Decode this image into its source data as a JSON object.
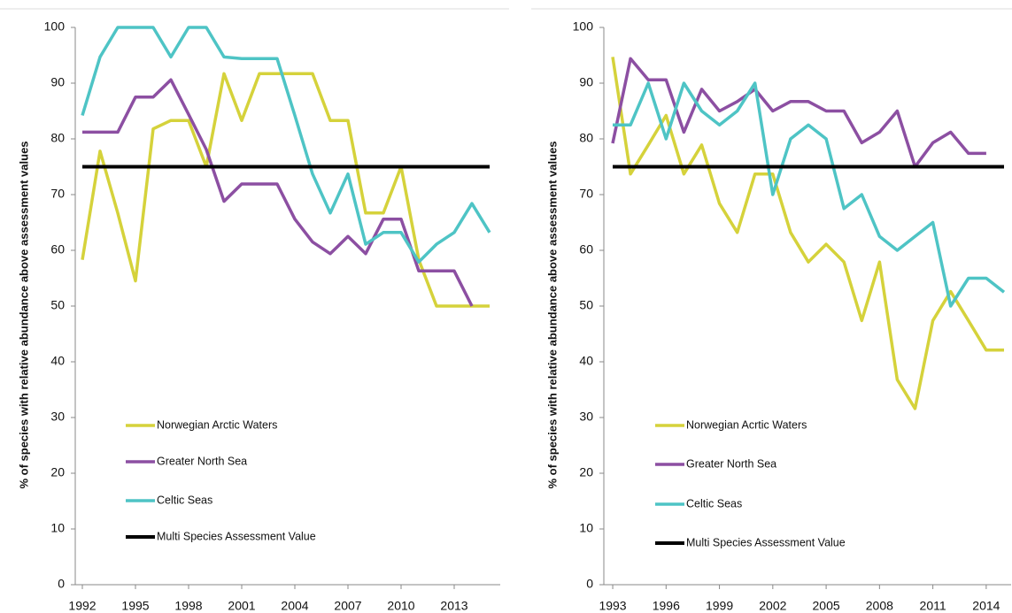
{
  "chart_data": [
    {
      "type": "line",
      "ylabel": "% of species with relative abundance above assessment values",
      "x": [
        1992,
        1993,
        1994,
        1995,
        1996,
        1997,
        1998,
        1999,
        2000,
        2001,
        2002,
        2003,
        2004,
        2005,
        2006,
        2007,
        2008,
        2009,
        2010,
        2011,
        2012,
        2013,
        2014,
        2015
      ],
      "xlim": [
        1991.6,
        2015.6
      ],
      "xticks": [
        1992,
        1995,
        1998,
        2001,
        2004,
        2007,
        2010,
        2013
      ],
      "ylim": [
        0,
        100
      ],
      "yticks": [
        0,
        10,
        20,
        30,
        40,
        50,
        60,
        70,
        80,
        90,
        100
      ],
      "series": [
        {
          "name": "Norwegian Arctic Waters",
          "color": "#d5d23b",
          "values": [
            58.3,
            77.8,
            66.7,
            54.5,
            81.8,
            83.3,
            83.3,
            75,
            91.7,
            83.3,
            91.7,
            91.7,
            91.7,
            91.7,
            83.3,
            83.3,
            66.7,
            66.7,
            75,
            58.3,
            50,
            50,
            50,
            50
          ]
        },
        {
          "name": "Greater North Sea",
          "color": "#8c4fa2",
          "values": [
            81.2,
            81.2,
            81.2,
            87.5,
            87.5,
            90.6,
            84.4,
            78.1,
            68.8,
            71.9,
            71.9,
            71.9,
            65.6,
            61.5,
            59.4,
            62.5,
            59.4,
            65.6,
            65.6,
            56.3,
            56.3,
            56.3,
            50,
            null
          ]
        },
        {
          "name": "Celtic Seas",
          "color": "#4ec4c5",
          "values": [
            84.2,
            94.7,
            100,
            100,
            100,
            94.7,
            100,
            100,
            94.7,
            94.4,
            94.4,
            94.4,
            84.2,
            73.7,
            66.7,
            73.7,
            61.1,
            63.2,
            63.2,
            57.9,
            61.1,
            63.2,
            68.4,
            63.2
          ]
        },
        {
          "name": "Multi Species Assessment Value",
          "color": "#000000",
          "values": [
            75,
            75,
            75,
            75,
            75,
            75,
            75,
            75,
            75,
            75,
            75,
            75,
            75,
            75,
            75,
            75,
            75,
            75,
            75,
            75,
            75,
            75,
            75,
            75
          ]
        }
      ]
    },
    {
      "type": "line",
      "ylabel": "% of species with relative abundance above assessment values",
      "x": [
        1993,
        1994,
        1995,
        1996,
        1997,
        1998,
        1999,
        2000,
        2001,
        2002,
        2003,
        2004,
        2005,
        2006,
        2007,
        2008,
        2009,
        2010,
        2011,
        2012,
        2013,
        2014,
        2015
      ],
      "xlim": [
        1992.5,
        2015.4
      ],
      "xticks": [
        1993,
        1996,
        1999,
        2002,
        2005,
        2008,
        2011,
        2014
      ],
      "ylim": [
        0,
        100
      ],
      "yticks": [
        0,
        10,
        20,
        30,
        40,
        50,
        60,
        70,
        80,
        90,
        100
      ],
      "series": [
        {
          "name": "Norwegian Acrtic Waters",
          "color": "#d5d23b",
          "values": [
            94.7,
            73.7,
            78.9,
            84.2,
            73.7,
            78.9,
            68.4,
            63.2,
            73.7,
            73.7,
            63.2,
            57.9,
            61.1,
            57.9,
            47.4,
            57.9,
            36.8,
            31.6,
            47.4,
            52.6,
            47.4,
            42.1,
            42.1
          ]
        },
        {
          "name": "Greater North Sea",
          "color": "#8c4fa2",
          "values": [
            79.2,
            94.4,
            90.6,
            90.6,
            81.2,
            88.9,
            85,
            86.7,
            88.9,
            85,
            86.7,
            86.7,
            85,
            85,
            79.3,
            81.2,
            85,
            75,
            79.3,
            81.2,
            77.4,
            77.4,
            null
          ]
        },
        {
          "name": "Celtic Seas",
          "color": "#4ec4c5",
          "values": [
            82.5,
            82.5,
            90,
            80,
            90,
            85,
            82.5,
            85,
            90,
            70,
            80,
            82.5,
            80,
            67.5,
            70,
            62.5,
            60,
            62.5,
            65,
            50,
            55,
            55,
            52.5
          ]
        },
        {
          "name": "Multi Species Assessment Value",
          "color": "#000000",
          "values": [
            75,
            75,
            75,
            75,
            75,
            75,
            75,
            75,
            75,
            75,
            75,
            75,
            75,
            75,
            75,
            75,
            75,
            75,
            75,
            75,
            75,
            75,
            75
          ]
        }
      ]
    }
  ]
}
